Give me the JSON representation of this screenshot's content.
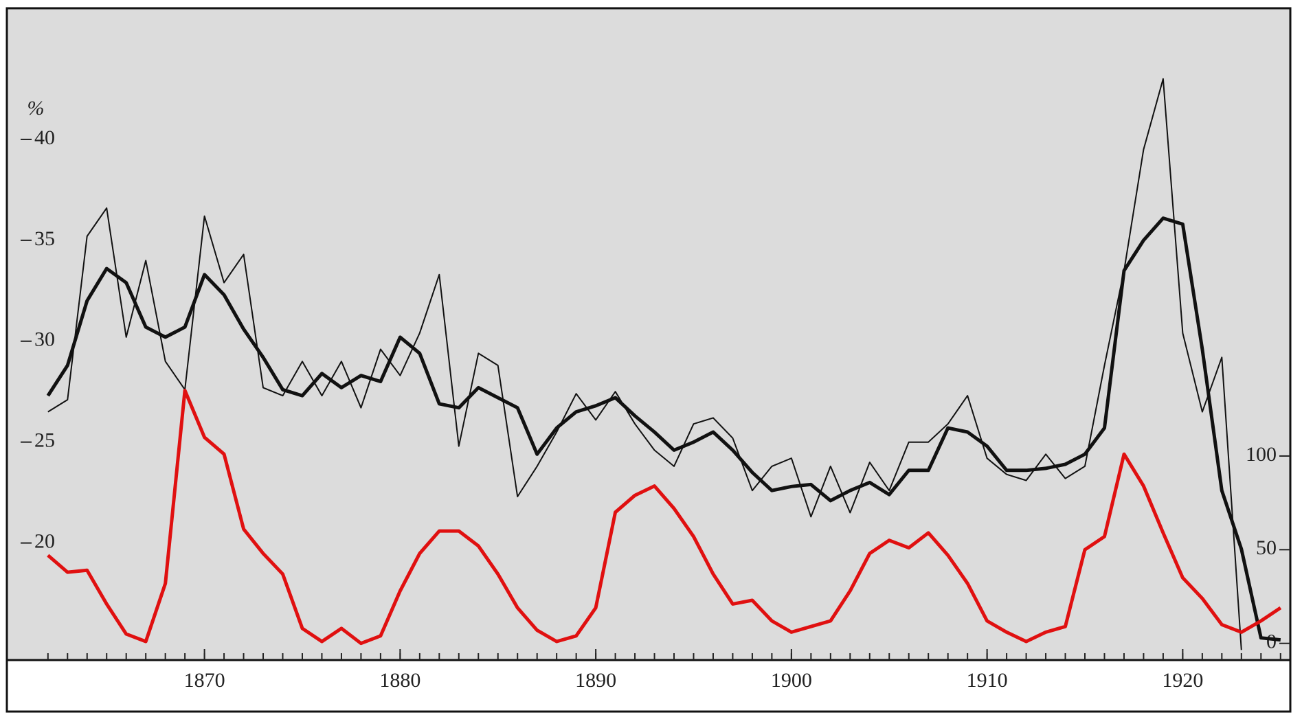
{
  "chart_data": {
    "type": "line",
    "y_label": "%",
    "x": [
      1862,
      1863,
      1864,
      1865,
      1866,
      1867,
      1868,
      1869,
      1870,
      1871,
      1872,
      1873,
      1874,
      1875,
      1876,
      1877,
      1878,
      1879,
      1880,
      1881,
      1882,
      1883,
      1884,
      1885,
      1886,
      1887,
      1888,
      1889,
      1890,
      1891,
      1892,
      1893,
      1894,
      1895,
      1896,
      1897,
      1898,
      1899,
      1900,
      1901,
      1902,
      1903,
      1904,
      1905,
      1906,
      1907,
      1908,
      1909,
      1910,
      1911,
      1912,
      1913,
      1914,
      1915,
      1916,
      1917,
      1918,
      1919,
      1920,
      1921,
      1922,
      1923,
      1924,
      1925
    ],
    "series": [
      {
        "color": "#111111",
        "linewidth": 5,
        "values": [
          27.3,
          28.8,
          32.0,
          33.6,
          32.9,
          30.7,
          30.2,
          30.7,
          33.3,
          32.3,
          30.6,
          29.2,
          27.6,
          27.3,
          28.4,
          27.7,
          28.3,
          28.0,
          30.2,
          29.4,
          26.9,
          26.7,
          27.7,
          27.2,
          26.7,
          24.4,
          25.7,
          26.5,
          26.8,
          27.2,
          26.3,
          25.5,
          24.6,
          25.0,
          25.5,
          24.6,
          23.5,
          22.6,
          22.8,
          22.9,
          22.1,
          22.6,
          23.0,
          22.4,
          23.6,
          23.6,
          25.7,
          25.5,
          24.8,
          23.6,
          23.6,
          23.7,
          23.9,
          24.4,
          25.7,
          33.5,
          35.0,
          36.1,
          35.8,
          29.6,
          22.6,
          19.7,
          15.3,
          15.2
        ]
      },
      {
        "color": "#111111",
        "linewidth": 2,
        "values": [
          26.5,
          27.1,
          35.2,
          36.6,
          30.2,
          34.0,
          29.0,
          27.6,
          36.2,
          32.9,
          34.3,
          27.7,
          27.3,
          29.0,
          27.3,
          29.0,
          26.7,
          29.6,
          28.3,
          30.4,
          33.3,
          24.8,
          29.4,
          28.8,
          22.3,
          23.8,
          25.5,
          27.4,
          26.1,
          27.5,
          25.9,
          24.6,
          23.8,
          25.9,
          26.2,
          25.2,
          22.6,
          23.8,
          24.2,
          21.3,
          23.8,
          21.5,
          24.0,
          22.6,
          25.0,
          25.0,
          25.9,
          27.3,
          24.2,
          23.4,
          23.1,
          24.4,
          23.2,
          23.8,
          28.8,
          33.5,
          39.5,
          43.0,
          30.4,
          26.5,
          29.2,
          14.7,
          null,
          null
        ]
      },
      {
        "color": "#e01010",
        "linewidth": 5,
        "axis": "y2",
        "values": [
          47,
          38,
          39,
          21,
          5,
          1,
          32,
          135,
          110,
          101,
          61,
          48,
          37,
          8,
          1,
          8,
          0,
          4,
          28,
          48,
          60,
          60,
          52,
          37,
          19,
          7,
          1,
          4,
          19,
          70,
          79,
          84,
          72,
          57,
          37,
          21,
          23,
          12,
          6,
          9,
          12,
          28,
          48,
          55,
          51,
          59,
          47,
          32,
          12,
          6,
          1,
          6,
          9,
          50,
          57,
          101,
          84,
          59,
          35,
          24,
          10,
          6,
          12,
          19
        ]
      }
    ],
    "xlim": [
      1859.9,
      1925.5
    ],
    "xticks": [
      1870,
      1880,
      1890,
      1900,
      1910,
      1920
    ],
    "ylim": [
      14.2,
      46.5
    ],
    "yticks": [
      20,
      25,
      30,
      35,
      40
    ],
    "y2lim": [
      -8.9,
      339
    ],
    "y2ticks": [
      0,
      50,
      100
    ]
  }
}
